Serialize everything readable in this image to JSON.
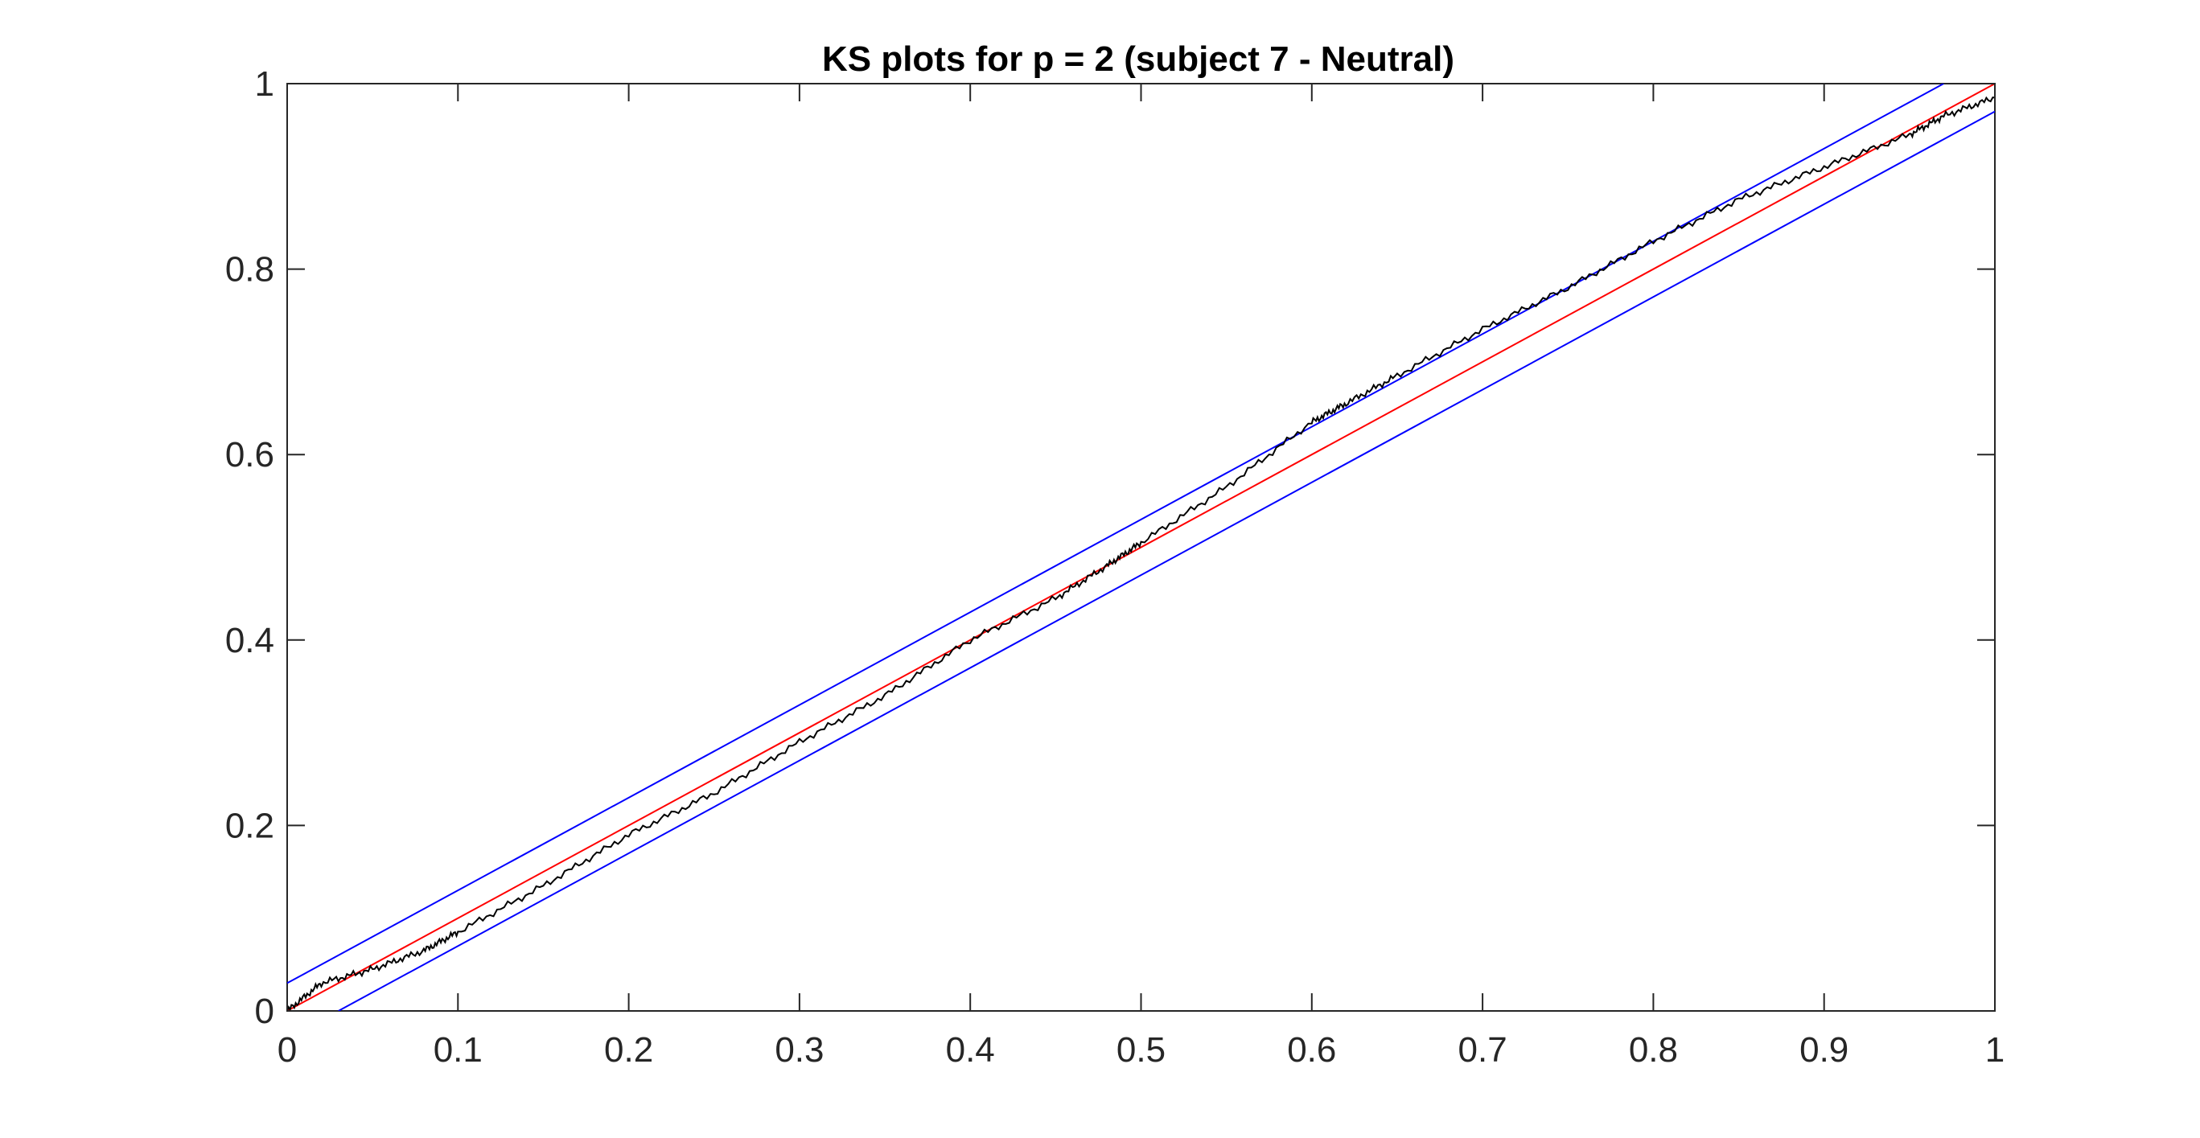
{
  "chart_data": {
    "type": "line",
    "title": "KS plots for p = 2 (subject 7 - Neutral)",
    "xlabel": "",
    "ylabel": "",
    "xlim": [
      0,
      1
    ],
    "ylim": [
      0,
      1
    ],
    "grid": false,
    "box": true,
    "x_ticks": [
      "0",
      "0.1",
      "0.2",
      "0.3",
      "0.4",
      "0.5",
      "0.6",
      "0.7",
      "0.8",
      "0.9",
      "1"
    ],
    "y_ticks": [
      "0",
      "0.2",
      "0.4",
      "0.6",
      "0.8",
      "1"
    ],
    "series": [
      {
        "color": "#ff0000",
        "style": "reference-diagonal",
        "x": [
          0,
          1
        ],
        "y": [
          0,
          1
        ]
      },
      {
        "color": "#0000ff",
        "style": "upper-confidence-bound",
        "x": [
          0,
          0.97
        ],
        "y": [
          0.03,
          1
        ]
      },
      {
        "color": "#0000ff",
        "style": "lower-confidence-bound",
        "x": [
          0.03,
          1
        ],
        "y": [
          0,
          0.97
        ]
      },
      {
        "color": "#000000",
        "style": "empirical-cdf",
        "x": [
          0,
          0.02,
          0.05,
          0.08,
          0.1,
          0.15,
          0.2,
          0.25,
          0.3,
          0.35,
          0.4,
          0.45,
          0.48,
          0.5,
          0.55,
          0.6,
          0.62,
          0.65,
          0.7,
          0.75,
          0.8,
          0.85,
          0.9,
          0.95,
          0.97,
          1
        ],
        "y": [
          0,
          0.03,
          0.045,
          0.065,
          0.085,
          0.135,
          0.19,
          0.235,
          0.29,
          0.34,
          0.4,
          0.445,
          0.48,
          0.505,
          0.565,
          0.635,
          0.655,
          0.685,
          0.735,
          0.78,
          0.83,
          0.875,
          0.91,
          0.945,
          0.965,
          0.985
        ]
      }
    ]
  }
}
